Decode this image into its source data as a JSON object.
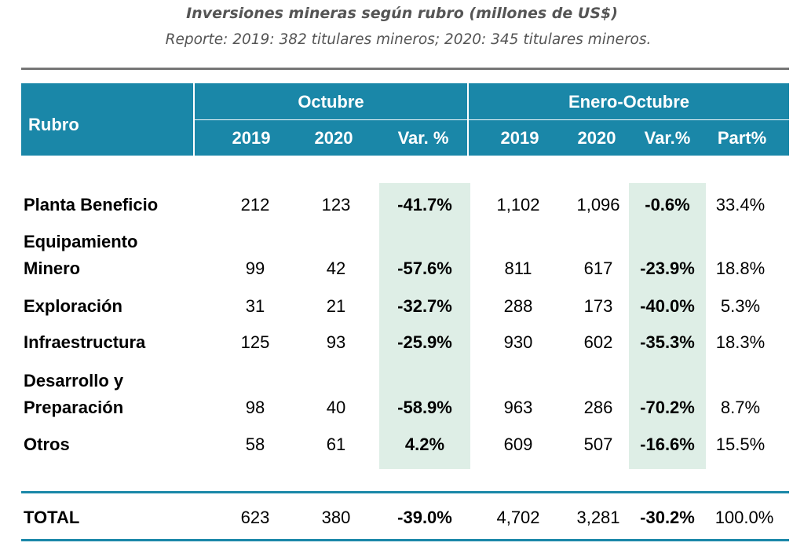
{
  "title": "Inversiones mineras según rubro (millones de US$)",
  "subtitle": "Reporte: 2019: 382 titulares mineros; 2020: 345 titulares mineros.",
  "header": {
    "rubro": "Rubro",
    "octubre": "Octubre",
    "enero_octubre": "Enero-Octubre",
    "col_2019": "2019",
    "col_2020": "2020",
    "col_var1": "Var. %",
    "col_2019b": "2019",
    "col_2020b": "2020",
    "col_var2": "Var.%",
    "col_part": "Part%"
  },
  "rows": [
    {
      "label_lines": [
        "Planta Beneficio"
      ],
      "oct_2019": "212",
      "oct_2020": "123",
      "oct_var": "-41.7%",
      "eo_2019": "1,102",
      "eo_2020": "1,096",
      "eo_var": "-0.6%",
      "part": "33.4%"
    },
    {
      "label_lines": [
        "Equipamiento",
        "Minero"
      ],
      "oct_2019": "99",
      "oct_2020": "42",
      "oct_var": "-57.6%",
      "eo_2019": "811",
      "eo_2020": "617",
      "eo_var": "-23.9%",
      "part": "18.8%"
    },
    {
      "label_lines": [
        "Exploración"
      ],
      "oct_2019": "31",
      "oct_2020": "21",
      "oct_var": "-32.7%",
      "eo_2019": "288",
      "eo_2020": "173",
      "eo_var": "-40.0%",
      "part": "5.3%"
    },
    {
      "label_lines": [
        "Infraestructura"
      ],
      "oct_2019": "125",
      "oct_2020": "93",
      "oct_var": "-25.9%",
      "eo_2019": "930",
      "eo_2020": "602",
      "eo_var": "-35.3%",
      "part": "18.3%"
    },
    {
      "label_lines": [
        "Desarrollo y",
        "Preparación"
      ],
      "oct_2019": "98",
      "oct_2020": "40",
      "oct_var": "-58.9%",
      "eo_2019": "963",
      "eo_2020": "286",
      "eo_var": "-70.2%",
      "part": "8.7%"
    },
    {
      "label_lines": [
        "Otros"
      ],
      "oct_2019": "58",
      "oct_2020": "61",
      "oct_var": "4.2%",
      "eo_2019": "609",
      "eo_2020": "507",
      "eo_var": "-16.6%",
      "part": "15.5%"
    }
  ],
  "total": {
    "label": "TOTAL",
    "oct_2019": "623",
    "oct_2020": "380",
    "oct_var": "-39.0%",
    "eo_2019": "4,702",
    "eo_2020": "3,281",
    "eo_var": "-30.2%",
    "part": "100.0%"
  },
  "colors": {
    "header": "#1a87a8",
    "highlight": "#deeee6",
    "rule_top": "#767676",
    "rule_bottom": "#1a87a8"
  }
}
